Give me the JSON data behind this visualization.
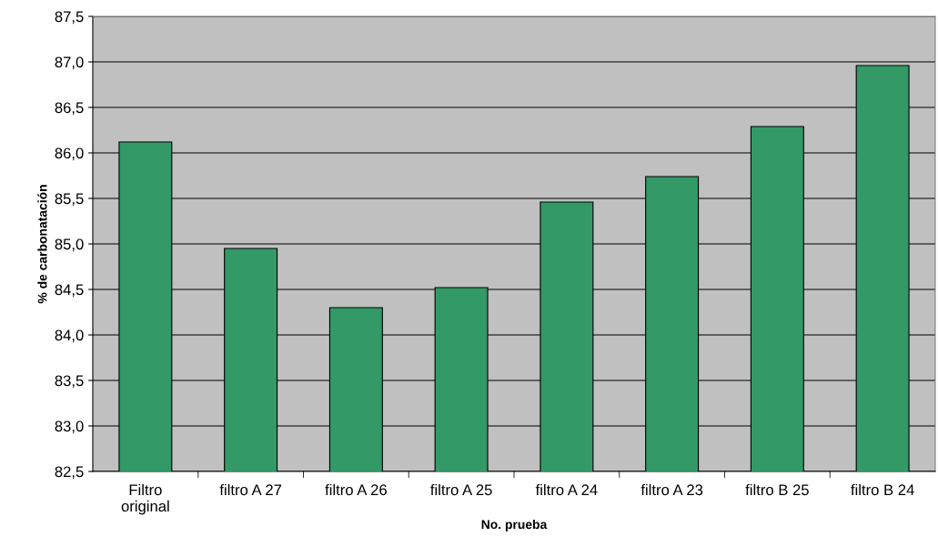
{
  "chart_data": {
    "type": "bar",
    "xlabel": "No. prueba",
    "ylabel": "% de carbonatación",
    "categories": [
      "Filtro\noriginal",
      "filtro A 27",
      "filtro A 26",
      "filtro A 25",
      "filtro A 24",
      "filtro A 23",
      "filtro B 25",
      "filtro B 24"
    ],
    "values": [
      86.12,
      84.95,
      84.3,
      84.52,
      85.46,
      85.74,
      86.29,
      86.96
    ],
    "color": "#339966",
    "ylim": [
      82.5,
      87.5
    ],
    "yticks": [
      {
        "value": 82.5,
        "label": "82,5"
      },
      {
        "value": 83.0,
        "label": "83,0"
      },
      {
        "value": 83.5,
        "label": "83,5"
      },
      {
        "value": 84.0,
        "label": "84,0"
      },
      {
        "value": 84.5,
        "label": "84,5"
      },
      {
        "value": 85.0,
        "label": "85,0"
      },
      {
        "value": 85.5,
        "label": "85,5"
      },
      {
        "value": 86.0,
        "label": "86,0"
      },
      {
        "value": 86.5,
        "label": "86,5"
      },
      {
        "value": 87.0,
        "label": "87,0"
      },
      {
        "value": 87.5,
        "label": "87,5"
      }
    ],
    "grid": "y"
  }
}
